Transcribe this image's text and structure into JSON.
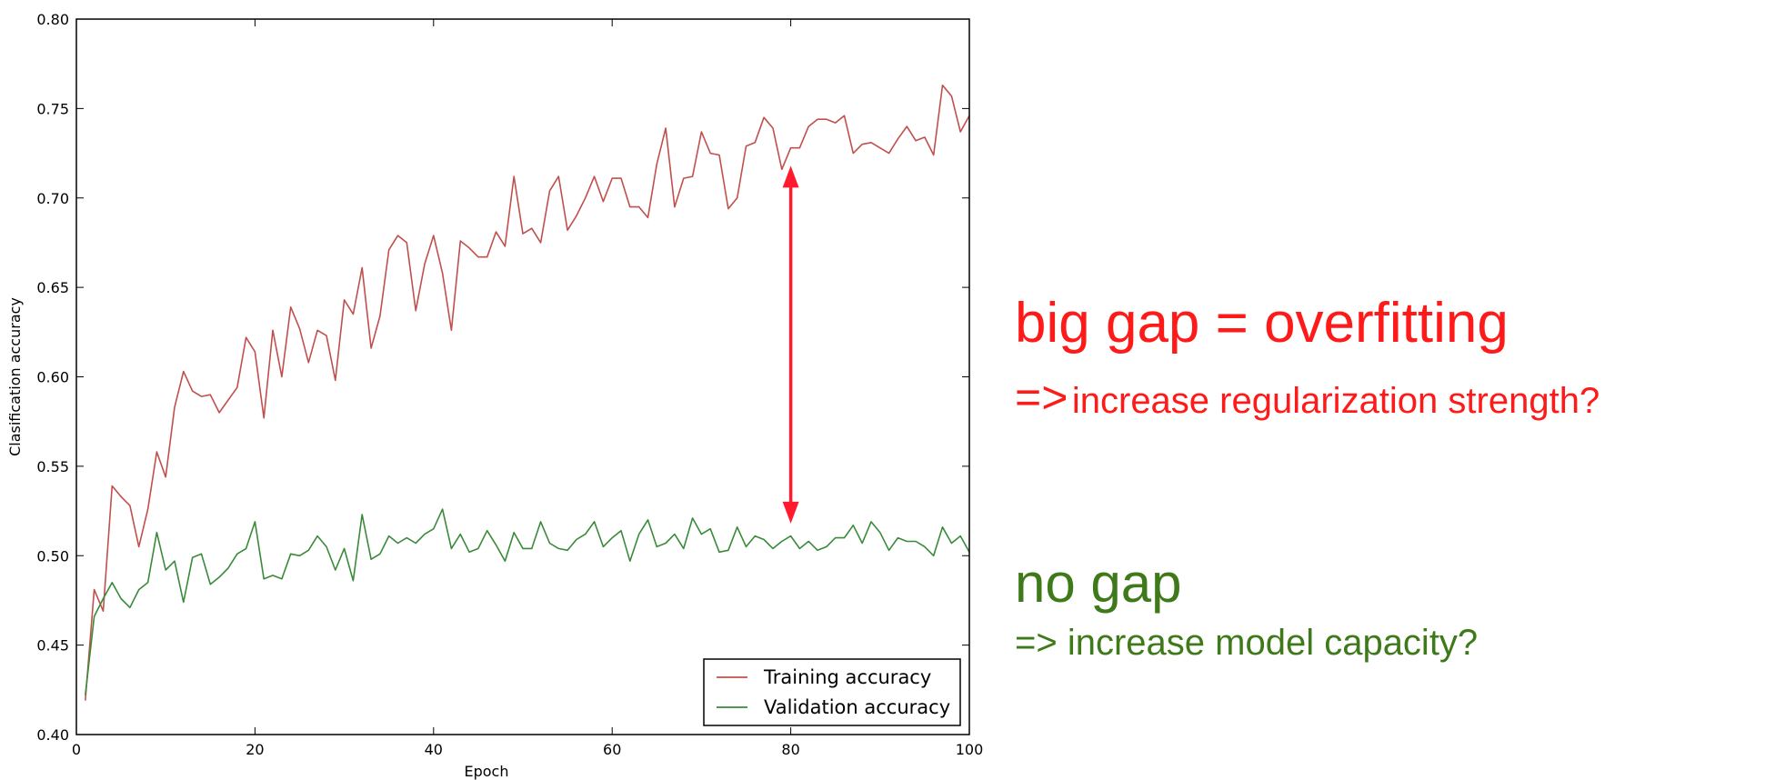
{
  "chart_data": {
    "type": "line",
    "title": "",
    "xlabel": "Epoch",
    "ylabel": "Clasification accuracy",
    "xlim": [
      0,
      100
    ],
    "ylim": [
      0.4,
      0.8
    ],
    "xticks": [
      0,
      20,
      40,
      60,
      80,
      100
    ],
    "yticks": [
      0.4,
      0.45,
      0.5,
      0.55,
      0.6,
      0.65,
      0.7,
      0.75,
      0.8
    ],
    "grid": false,
    "legend_position": "lower-right",
    "x": [
      1,
      2,
      3,
      4,
      5,
      6,
      7,
      8,
      9,
      10,
      11,
      12,
      13,
      14,
      15,
      16,
      17,
      18,
      19,
      20,
      21,
      22,
      23,
      24,
      25,
      26,
      27,
      28,
      29,
      30,
      31,
      32,
      33,
      34,
      35,
      36,
      37,
      38,
      39,
      40,
      41,
      42,
      43,
      44,
      45,
      46,
      47,
      48,
      49,
      50,
      51,
      52,
      53,
      54,
      55,
      56,
      57,
      58,
      59,
      60,
      61,
      62,
      63,
      64,
      65,
      66,
      67,
      68,
      69,
      70,
      71,
      72,
      73,
      74,
      75,
      76,
      77,
      78,
      79,
      80,
      81,
      82,
      83,
      84,
      85,
      86,
      87,
      88,
      89,
      90,
      91,
      92,
      93,
      94,
      95,
      96,
      97,
      98,
      99,
      100
    ],
    "series": [
      {
        "name": "Training accuracy",
        "color": "#c0504d",
        "values": [
          0.419,
          0.481,
          0.469,
          0.539,
          0.533,
          0.528,
          0.505,
          0.526,
          0.558,
          0.544,
          0.583,
          0.603,
          0.592,
          0.589,
          0.59,
          0.58,
          0.587,
          0.594,
          0.622,
          0.614,
          0.577,
          0.626,
          0.6,
          0.639,
          0.627,
          0.608,
          0.626,
          0.623,
          0.598,
          0.643,
          0.635,
          0.661,
          0.616,
          0.634,
          0.671,
          0.679,
          0.675,
          0.637,
          0.663,
          0.679,
          0.658,
          0.626,
          0.676,
          0.672,
          0.667,
          0.667,
          0.681,
          0.673,
          0.712,
          0.68,
          0.683,
          0.675,
          0.704,
          0.712,
          0.682,
          0.69,
          0.7,
          0.712,
          0.698,
          0.711,
          0.711,
          0.695,
          0.695,
          0.689,
          0.719,
          0.739,
          0.695,
          0.711,
          0.712,
          0.737,
          0.725,
          0.724,
          0.694,
          0.7,
          0.729,
          0.731,
          0.745,
          0.739,
          0.716,
          0.728,
          0.728,
          0.74,
          0.744,
          0.744,
          0.742,
          0.746,
          0.725,
          0.73,
          0.731,
          0.728,
          0.725,
          0.733,
          0.74,
          0.732,
          0.734,
          0.724,
          0.763,
          0.757,
          0.737,
          0.746
        ]
      },
      {
        "name": "Validation accuracy",
        "color": "#3a8a3a",
        "values": [
          0.422,
          0.466,
          0.476,
          0.485,
          0.476,
          0.471,
          0.481,
          0.485,
          0.513,
          0.492,
          0.497,
          0.474,
          0.499,
          0.501,
          0.484,
          0.488,
          0.493,
          0.501,
          0.504,
          0.519,
          0.487,
          0.489,
          0.487,
          0.501,
          0.5,
          0.503,
          0.511,
          0.505,
          0.492,
          0.504,
          0.486,
          0.523,
          0.498,
          0.501,
          0.511,
          0.507,
          0.51,
          0.507,
          0.512,
          0.515,
          0.526,
          0.504,
          0.512,
          0.502,
          0.504,
          0.514,
          0.506,
          0.497,
          0.513,
          0.504,
          0.504,
          0.519,
          0.507,
          0.504,
          0.503,
          0.509,
          0.512,
          0.519,
          0.505,
          0.51,
          0.514,
          0.497,
          0.512,
          0.52,
          0.505,
          0.507,
          0.512,
          0.504,
          0.521,
          0.512,
          0.515,
          0.502,
          0.503,
          0.516,
          0.505,
          0.511,
          0.509,
          0.504,
          0.508,
          0.511,
          0.504,
          0.508,
          0.503,
          0.505,
          0.51,
          0.51,
          0.517,
          0.507,
          0.519,
          0.513,
          0.503,
          0.51,
          0.508,
          0.508,
          0.505,
          0.5,
          0.516,
          0.507,
          0.511,
          0.502
        ]
      }
    ],
    "annotation_arrow": {
      "x": 80,
      "y_from": 0.518,
      "y_to": 0.718,
      "color": "#ff1a2e"
    }
  },
  "annotations": {
    "overfit_title": "big gap = overfitting",
    "overfit_arrow_symbol": "=>",
    "overfit_text": "increase regularization strength?",
    "nogap_title": "no gap",
    "nogap_text": "=> increase model capacity?"
  }
}
